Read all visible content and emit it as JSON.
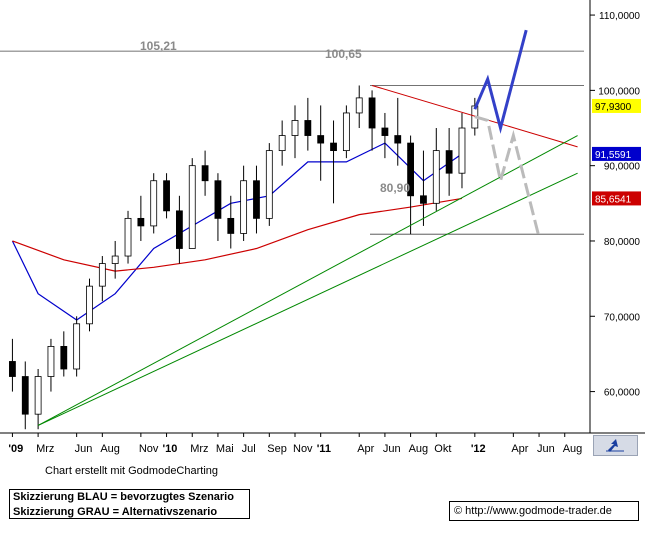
{
  "chart_data": {
    "type": "candlestick",
    "x_ticks": [
      "'09",
      "Mrz",
      "Jun",
      "Aug",
      "Nov",
      "'10",
      "Mrz",
      "Mai",
      "Jul",
      "Sep",
      "Nov",
      "'11",
      "Apr",
      "Jun",
      "Aug",
      "Okt",
      "'12",
      "Apr",
      "Jun",
      "Aug"
    ],
    "x_range": [
      "2009-01",
      "2012-09"
    ],
    "y_ticks": [
      60,
      70,
      80,
      90,
      100,
      110
    ],
    "y_tick_labels": [
      "60,0000",
      "70,0000",
      "80,0000",
      "90,0000",
      "100,0000",
      "110,0000"
    ],
    "ylim": [
      54.5,
      112
    ],
    "grid": false,
    "price_tags": [
      {
        "label": "97,9300",
        "value": 97.93,
        "color": "#ffff00"
      },
      {
        "label": "91,5591",
        "value": 91.56,
        "color": "#0000cc"
      },
      {
        "label": "85,6541",
        "value": 85.65,
        "color": "#cc0000"
      }
    ],
    "annotations": [
      "105,21",
      "100,65",
      "80,90"
    ],
    "horizontal_levels": [
      105.21,
      100.65,
      80.9
    ],
    "series": [
      {
        "values": [
          {
            "x": "2009-01",
            "y": 80
          },
          {
            "x": "2009-03",
            "y": 73
          },
          {
            "x": "2009-06",
            "y": 69.5
          },
          {
            "x": "2009-09",
            "y": 73
          },
          {
            "x": "2009-12",
            "y": 79
          },
          {
            "x": "2010-03",
            "y": 82
          },
          {
            "x": "2010-06",
            "y": 85
          },
          {
            "x": "2010-09",
            "y": 86
          },
          {
            "x": "2010-12",
            "y": 90.5
          },
          {
            "x": "2011-03",
            "y": 90.5
          },
          {
            "x": "2011-06",
            "y": 93
          },
          {
            "x": "2011-09",
            "y": 88
          },
          {
            "x": "2011-12",
            "y": 91.56
          }
        ],
        "color": "#0000cc"
      },
      {
        "values": [
          {
            "x": "2009-01",
            "y": 80
          },
          {
            "x": "2009-05",
            "y": 77.5
          },
          {
            "x": "2009-09",
            "y": 76
          },
          {
            "x": "2009-12",
            "y": 76.5
          },
          {
            "x": "2010-04",
            "y": 77.5
          },
          {
            "x": "2010-08",
            "y": 79
          },
          {
            "x": "2010-12",
            "y": 81.5
          },
          {
            "x": "2011-04",
            "y": 83.5
          },
          {
            "x": "2011-08",
            "y": 84.5
          },
          {
            "x": "2011-12",
            "y": 85.65
          }
        ],
        "color": "#cc0000"
      }
    ],
    "candles": [
      {
        "x": "2009-01",
        "o": 64,
        "h": 67,
        "l": 60,
        "c": 62
      },
      {
        "x": "2009-02",
        "o": 62,
        "h": 64,
        "l": 55,
        "c": 57
      },
      {
        "x": "2009-03",
        "o": 57,
        "h": 63,
        "l": 55,
        "c": 62
      },
      {
        "x": "2009-04",
        "o": 62,
        "h": 67,
        "l": 60,
        "c": 66
      },
      {
        "x": "2009-05",
        "o": 66,
        "h": 68,
        "l": 62,
        "c": 63
      },
      {
        "x": "2009-06",
        "o": 63,
        "h": 70,
        "l": 62,
        "c": 69
      },
      {
        "x": "2009-07",
        "o": 69,
        "h": 75,
        "l": 68,
        "c": 74
      },
      {
        "x": "2009-08",
        "o": 74,
        "h": 78,
        "l": 72,
        "c": 77
      },
      {
        "x": "2009-09",
        "o": 77,
        "h": 80,
        "l": 75,
        "c": 78
      },
      {
        "x": "2009-10",
        "o": 78,
        "h": 84,
        "l": 77,
        "c": 83
      },
      {
        "x": "2009-11",
        "o": 83,
        "h": 86,
        "l": 80,
        "c": 82
      },
      {
        "x": "2009-12",
        "o": 82,
        "h": 89,
        "l": 81,
        "c": 88
      },
      {
        "x": "2010-01",
        "o": 88,
        "h": 89,
        "l": 83,
        "c": 84
      },
      {
        "x": "2010-02",
        "o": 84,
        "h": 86,
        "l": 77,
        "c": 79
      },
      {
        "x": "2010-03",
        "o": 79,
        "h": 91,
        "l": 79,
        "c": 90
      },
      {
        "x": "2010-04",
        "o": 90,
        "h": 92,
        "l": 86,
        "c": 88
      },
      {
        "x": "2010-05",
        "o": 88,
        "h": 89,
        "l": 80,
        "c": 83
      },
      {
        "x": "2010-06",
        "o": 83,
        "h": 86,
        "l": 79,
        "c": 81
      },
      {
        "x": "2010-07",
        "o": 81,
        "h": 90,
        "l": 80,
        "c": 88
      },
      {
        "x": "2010-08",
        "o": 88,
        "h": 90,
        "l": 81,
        "c": 83
      },
      {
        "x": "2010-09",
        "o": 83,
        "h": 93,
        "l": 82,
        "c": 92
      },
      {
        "x": "2010-10",
        "o": 92,
        "h": 96,
        "l": 90,
        "c": 94
      },
      {
        "x": "2010-11",
        "o": 94,
        "h": 98,
        "l": 91,
        "c": 96
      },
      {
        "x": "2010-12",
        "o": 96,
        "h": 99,
        "l": 92,
        "c": 94
      },
      {
        "x": "2011-01",
        "o": 94,
        "h": 98,
        "l": 88,
        "c": 93
      },
      {
        "x": "2011-02",
        "o": 93,
        "h": 96,
        "l": 85,
        "c": 92
      },
      {
        "x": "2011-03",
        "o": 92,
        "h": 98,
        "l": 91,
        "c": 97
      },
      {
        "x": "2011-04",
        "o": 97,
        "h": 100.65,
        "l": 95,
        "c": 99
      },
      {
        "x": "2011-05",
        "o": 99,
        "h": 100,
        "l": 92,
        "c": 95
      },
      {
        "x": "2011-06",
        "o": 95,
        "h": 97,
        "l": 91,
        "c": 94
      },
      {
        "x": "2011-07",
        "o": 94,
        "h": 99,
        "l": 90,
        "c": 93
      },
      {
        "x": "2011-08",
        "o": 93,
        "h": 94,
        "l": 80.9,
        "c": 86
      },
      {
        "x": "2011-09",
        "o": 86,
        "h": 92,
        "l": 82,
        "c": 85
      },
      {
        "x": "2011-10",
        "o": 85,
        "h": 95,
        "l": 84,
        "c": 92
      },
      {
        "x": "2011-11",
        "o": 92,
        "h": 95,
        "l": 86,
        "c": 89
      },
      {
        "x": "2011-12",
        "o": 89,
        "h": 97,
        "l": 87,
        "c": 95
      },
      {
        "x": "2012-01",
        "o": 95,
        "h": 99,
        "l": 94,
        "c": 97.93
      }
    ],
    "trendlines": [
      {
        "from": {
          "x": "2011-05",
          "y": 100.65
        },
        "to": {
          "x": "2012-09",
          "y": 92.5
        },
        "color": "#cc0000"
      },
      {
        "from": {
          "x": "2009-03",
          "y": 55.5
        },
        "to": {
          "x": "2012-09",
          "y": 94
        },
        "color": "#008800"
      },
      {
        "from": {
          "x": "2009-03",
          "y": 55.5
        },
        "to": {
          "x": "2012-09",
          "y": 89
        },
        "color": "#008800"
      }
    ],
    "scenario_blue": [
      {
        "x": "2012-01",
        "y": 97.5
      },
      {
        "x": "2012-02",
        "y": 101.5
      },
      {
        "x": "2012-03",
        "y": 95
      },
      {
        "x": "2012-05",
        "y": 108
      }
    ],
    "scenario_gray": [
      {
        "x": "2012-01",
        "y": 96.5
      },
      {
        "x": "2012-02",
        "y": 96
      },
      {
        "x": "2012-03",
        "y": 88
      },
      {
        "x": "2012-04",
        "y": 94
      },
      {
        "x": "2012-06",
        "y": 80.5
      }
    ]
  },
  "footer": {
    "credit": "Chart erstellt mit GodmodeCharting",
    "scenario_blue_text": "Skizzierung BLAU = bevorzugtes Szenario",
    "scenario_gray_text": "Skizzierung GRAU = Alternativszenario",
    "copyright_symbol": "©",
    "url": "http://www.godmode-trader.de"
  },
  "icons": {
    "corner": "arrow-icon"
  }
}
